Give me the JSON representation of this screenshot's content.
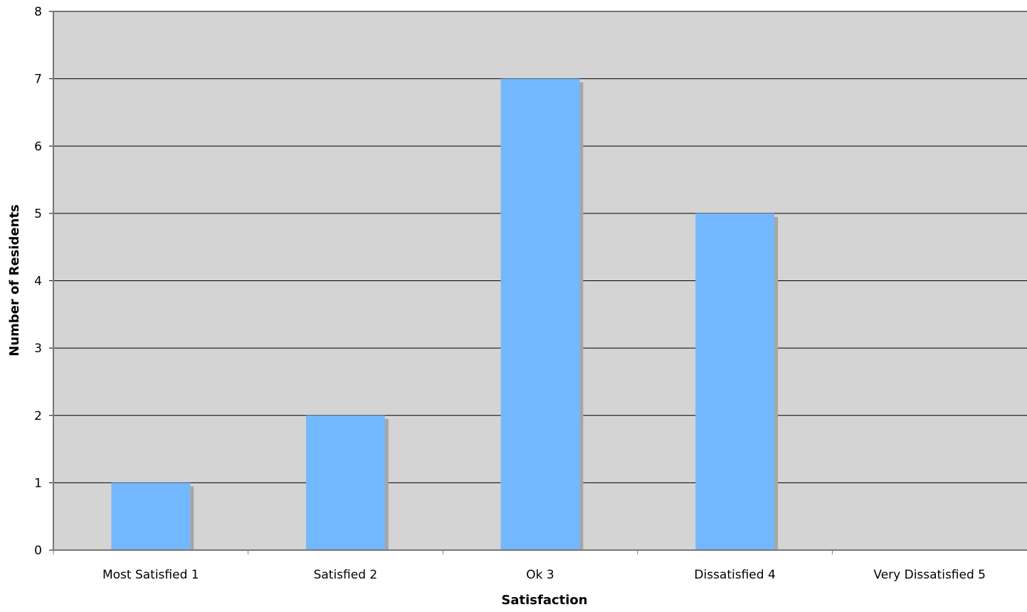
{
  "chart_data": {
    "type": "bar",
    "title": "",
    "xlabel": "Satisfaction",
    "ylabel": "Number of Residents",
    "categories": [
      "Most Satisfied 1",
      "Satisfied 2",
      "Ok 3",
      "Dissatisfied 4",
      "Very Dissatisfied 5"
    ],
    "values": [
      1,
      2,
      7,
      5,
      0
    ],
    "ylim": [
      0,
      8
    ],
    "yticks": [
      "0",
      "1",
      "2",
      "3",
      "4",
      "5",
      "6",
      "7",
      "8"
    ],
    "grid": true,
    "legend": "none",
    "colors": {
      "bar": "#73b8ff",
      "bar_shadow": "#a6a6a6",
      "plot_background": "#d4d4d4",
      "gridline": "#000000"
    }
  }
}
